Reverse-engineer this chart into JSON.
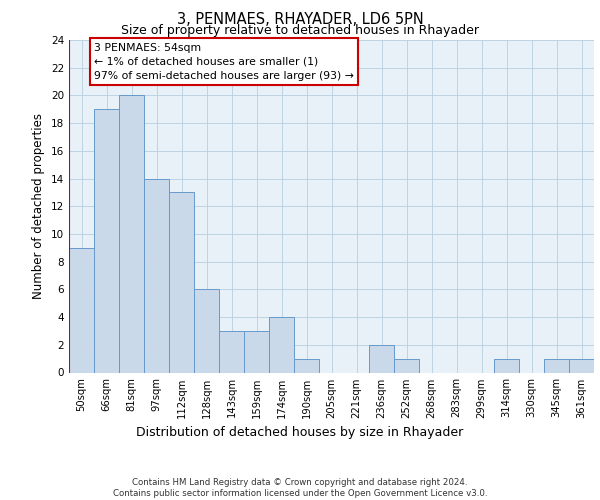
{
  "title1": "3, PENMAES, RHAYADER, LD6 5PN",
  "title2": "Size of property relative to detached houses in Rhayader",
  "xlabel": "Distribution of detached houses by size in Rhayader",
  "ylabel": "Number of detached properties",
  "bin_labels": [
    "50sqm",
    "66sqm",
    "81sqm",
    "97sqm",
    "112sqm",
    "128sqm",
    "143sqm",
    "159sqm",
    "174sqm",
    "190sqm",
    "205sqm",
    "221sqm",
    "236sqm",
    "252sqm",
    "268sqm",
    "283sqm",
    "299sqm",
    "314sqm",
    "330sqm",
    "345sqm",
    "361sqm"
  ],
  "bar_values": [
    9,
    19,
    20,
    14,
    13,
    6,
    3,
    3,
    4,
    1,
    0,
    0,
    2,
    1,
    0,
    0,
    0,
    1,
    0,
    1,
    1
  ],
  "bar_color": "#c9d9ea",
  "bar_edge_color": "#6699cc",
  "highlight_color": "#cc0000",
  "annotation_text": "3 PENMAES: 54sqm\n← 1% of detached houses are smaller (1)\n97% of semi-detached houses are larger (93) →",
  "annotation_box_color": "#ffffff",
  "annotation_box_edge": "#cc0000",
  "ylim": [
    0,
    24
  ],
  "yticks": [
    0,
    2,
    4,
    6,
    8,
    10,
    12,
    14,
    16,
    18,
    20,
    22,
    24
  ],
  "footer_text": "Contains HM Land Registry data © Crown copyright and database right 2024.\nContains public sector information licensed under the Open Government Licence v3.0.",
  "grid_color": "#b8cfe0",
  "background_color": "#e8f0f8"
}
